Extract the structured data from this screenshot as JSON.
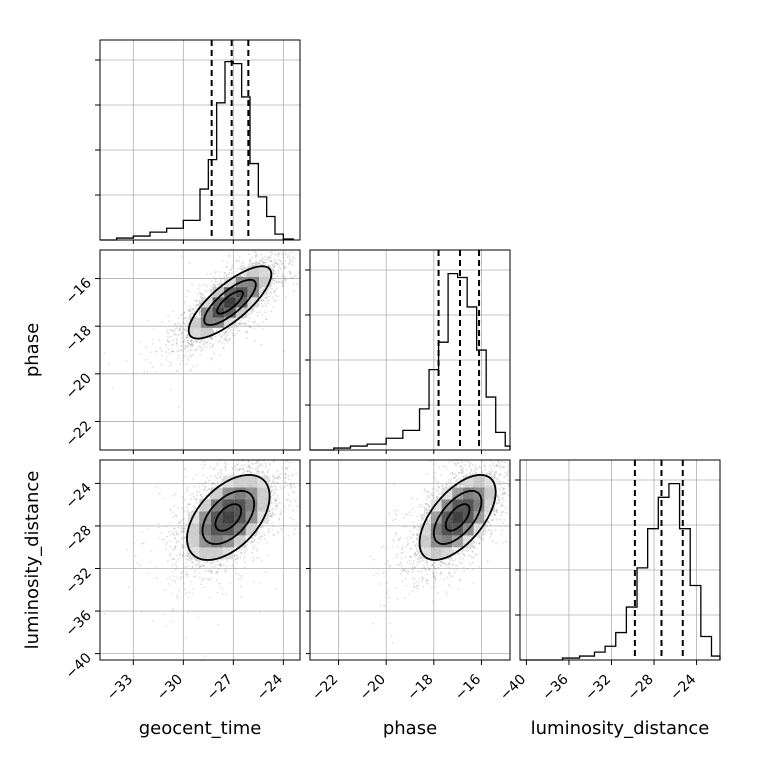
{
  "chart_data": {
    "type": "corner",
    "parameters": [
      "geocent_time",
      "phase",
      "luminosity_distance"
    ],
    "axis_labels": {
      "x": [
        "geocent_time",
        "phase",
        "luminosity_distance"
      ],
      "y": [
        "",
        "phase",
        "luminosity_distance"
      ]
    },
    "ranges": {
      "geocent_time": [
        -35.0,
        -23.0
      ],
      "phase": [
        -23.2,
        -14.8
      ],
      "luminosity_distance": [
        -40.6,
        -21.8
      ]
    },
    "ticks": {
      "geocent_time": [
        -33,
        -30,
        -27,
        -24
      ],
      "phase": [
        -22,
        -20,
        -18,
        -16
      ],
      "luminosity_distance": [
        -40,
        -36,
        -32,
        -28,
        -24
      ]
    },
    "tick_labels": {
      "geocent_time": [
        "−33",
        "−30",
        "−27",
        "−24"
      ],
      "phase": [
        "−22",
        "−20",
        "−18",
        "−16"
      ],
      "luminosity_distance": [
        "−40",
        "−36",
        "−32",
        "−28",
        "−24"
      ]
    },
    "histograms": {
      "geocent_time": {
        "bin_edges": [
          -35,
          -34,
          -33,
          -32,
          -31,
          -30,
          -29,
          -28.5,
          -28,
          -27.5,
          -27,
          -26.5,
          -26,
          -25.5,
          -25,
          -24.5,
          -24,
          -23.4
        ],
        "counts": [
          0.0,
          0.01,
          0.02,
          0.04,
          0.06,
          0.1,
          0.26,
          0.41,
          0.7,
          0.91,
          0.9,
          0.73,
          0.39,
          0.22,
          0.12,
          0.03,
          0.005
        ],
        "quantiles": [
          -28.3,
          -27.1,
          -26.1
        ]
      },
      "phase": {
        "bin_edges": [
          -23.2,
          -22.2,
          -21.5,
          -20.8,
          -20.0,
          -19.3,
          -18.6,
          -18.2,
          -17.8,
          -17.4,
          -17.0,
          -16.6,
          -16.2,
          -15.8,
          -15.4,
          -15.0,
          -14.8
        ],
        "counts": [
          0.0,
          0.01,
          0.02,
          0.03,
          0.06,
          0.1,
          0.21,
          0.41,
          0.55,
          0.9,
          0.88,
          0.73,
          0.51,
          0.27,
          0.09,
          0.02
        ],
        "quantiles": [
          -17.8,
          -16.9,
          -16.1
        ]
      },
      "luminosity_distance": {
        "bin_edges": [
          -40.6,
          -36.6,
          -35.0,
          -33.6,
          -32.6,
          -31.6,
          -30.6,
          -29.6,
          -28.6,
          -27.6,
          -26.6,
          -25.6,
          -24.6,
          -23.6,
          -22.6,
          -21.8
        ],
        "counts": [
          0.0,
          0.01,
          0.02,
          0.04,
          0.07,
          0.14,
          0.27,
          0.47,
          0.67,
          0.83,
          0.9,
          0.67,
          0.38,
          0.12,
          0.02
        ],
        "quantiles": [
          -29.8,
          -27.3,
          -25.3
        ]
      }
    },
    "pairs": [
      {
        "x": "geocent_time",
        "y": "phase",
        "center": [
          -27.2,
          -17.0
        ],
        "sigma": [
          1.55,
          0.95
        ],
        "rho": 0.78,
        "contour_levels": [
          0.5,
          1.0,
          1.6
        ]
      },
      {
        "x": "geocent_time",
        "y": "luminosity_distance",
        "center": [
          -27.3,
          -27.2
        ],
        "sigma": [
          1.55,
          2.5
        ],
        "rho": 0.5,
        "contour_levels": [
          0.5,
          1.0,
          1.6
        ]
      },
      {
        "x": "phase",
        "y": "luminosity_distance",
        "center": [
          -17.0,
          -27.2
        ],
        "sigma": [
          1.0,
          2.5
        ],
        "rho": 0.6,
        "contour_levels": [
          0.5,
          1.0,
          1.6
        ]
      }
    ],
    "grid": true
  }
}
